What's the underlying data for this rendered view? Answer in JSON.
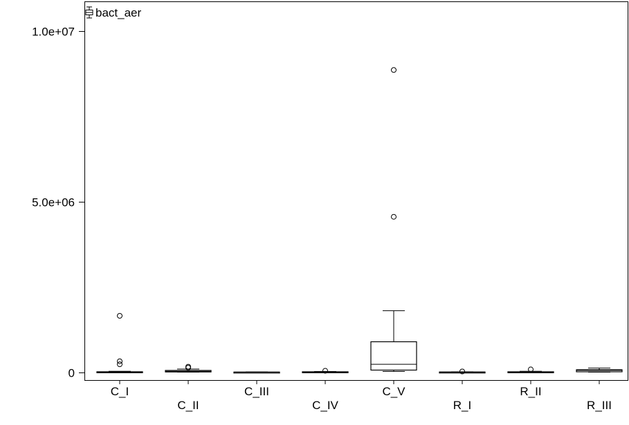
{
  "chart_data": {
    "type": "box",
    "legend": {
      "label": "bact_aer",
      "placement": "top-left"
    },
    "categories": [
      "C_I",
      "C_II",
      "C_III",
      "C_IV",
      "C_V",
      "R_I",
      "R_II",
      "R_III"
    ],
    "boxes": [
      {
        "category": "C_I",
        "min": 0,
        "q1": 0,
        "median": 2000,
        "q3": 12000,
        "max": 25000,
        "outliers": [
          1650000,
          320000,
          230000
        ]
      },
      {
        "category": "C_II",
        "min": 0,
        "q1": 5000,
        "median": 25000,
        "q3": 50000,
        "max": 90000,
        "outliers": [
          130000,
          160000
        ]
      },
      {
        "category": "C_III",
        "min": 0,
        "q1": 0,
        "median": 1000,
        "q3": 3000,
        "max": 6000,
        "outliers": []
      },
      {
        "category": "C_IV",
        "min": 0,
        "q1": 0,
        "median": 5000,
        "q3": 12000,
        "max": 20000,
        "outliers": [
          40000
        ]
      },
      {
        "category": "C_V",
        "min": 20000,
        "q1": 60000,
        "median": 230000,
        "q3": 890000,
        "max": 1800000,
        "outliers": [
          4550000,
          8850000
        ]
      },
      {
        "category": "R_I",
        "min": 0,
        "q1": 0,
        "median": 2000,
        "q3": 5000,
        "max": 10000,
        "outliers": [
          20000
        ]
      },
      {
        "category": "R_II",
        "min": 0,
        "q1": 0,
        "median": 5000,
        "q3": 12000,
        "max": 25000,
        "outliers": [
          80000
        ]
      },
      {
        "category": "R_III",
        "min": 0,
        "q1": 10000,
        "median": 50000,
        "q3": 70000,
        "max": 120000,
        "outliers": []
      }
    ],
    "y_ticks": [
      {
        "value": 0,
        "label": "0"
      },
      {
        "value": 5000000,
        "label": "5.0e+06"
      },
      {
        "value": 10000000,
        "label": "1.0e+07"
      }
    ],
    "ylim": [
      -400000,
      10500000
    ],
    "grid": false
  }
}
